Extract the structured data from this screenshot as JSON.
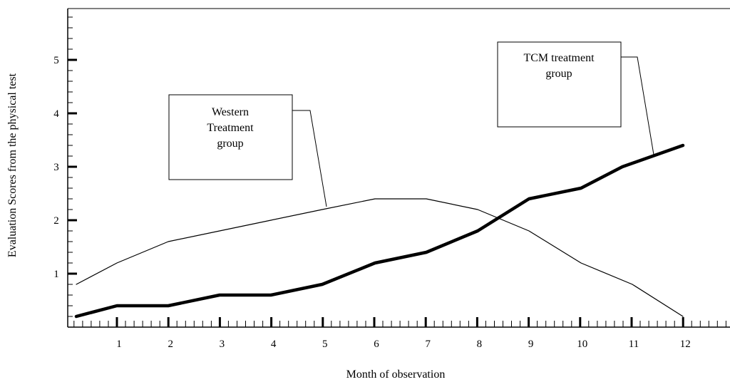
{
  "chart_data": {
    "type": "line",
    "title": "",
    "xlabel": "Month of observation",
    "ylabel": "Evaluation Scores from the physical test",
    "xlim": [
      -0.8,
      14
    ],
    "ylim": [
      0,
      6
    ],
    "x_ticks": [
      1,
      2,
      3,
      4,
      5,
      6,
      7,
      8,
      9,
      10,
      11,
      12
    ],
    "y_ticks": [
      1,
      2,
      3,
      4,
      5
    ],
    "grid": false,
    "legend": "callout boxes",
    "series": [
      {
        "name": "Western Treatment group",
        "label_lines": [
          "Western",
          "Treatment",
          "group"
        ],
        "stroke": "thin",
        "color": "#000000",
        "x": [
          -0.8,
          0,
          1,
          2,
          3,
          4,
          5,
          6,
          7,
          8,
          9,
          10,
          11,
          12
        ],
        "y": [
          0.8,
          1.2,
          1.6,
          1.8,
          2.0,
          2.2,
          2.4,
          2.4,
          2.2,
          1.8,
          1.2,
          0.8,
          0.2,
          null
        ]
      },
      {
        "name": "TCM treatment group",
        "label_lines": [
          "TCM treatment",
          "group"
        ],
        "stroke": "thick",
        "color": "#000000",
        "x": [
          -0.8,
          0,
          1,
          2,
          3,
          4,
          5,
          6,
          7,
          8,
          9,
          10,
          11,
          12
        ],
        "y": [
          0.2,
          0.4,
          0.4,
          0.6,
          0.6,
          0.8,
          1.2,
          1.4,
          1.8,
          2.4,
          2.6,
          3.0,
          3.4,
          null
        ]
      }
    ]
  }
}
